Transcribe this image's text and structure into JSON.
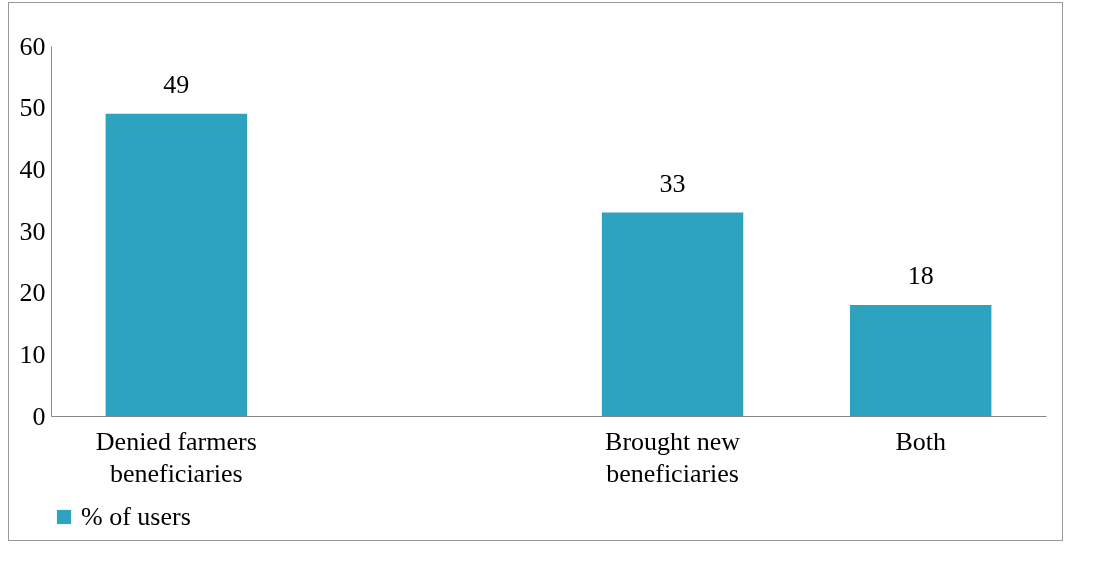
{
  "chart_data": {
    "type": "bar",
    "categories": [
      "Denied farmers beneficiaries",
      null,
      "Brought new beneficiaries",
      "Both"
    ],
    "series": [
      {
        "name": "% of users",
        "color": "#2ea3bf",
        "values": [
          49,
          null,
          33,
          18
        ]
      }
    ],
    "ylim": [
      0,
      60
    ],
    "yticks": [
      0,
      10,
      20,
      30,
      40,
      50,
      60
    ],
    "grid": false,
    "legend": "bottom",
    "data_labels": true
  }
}
